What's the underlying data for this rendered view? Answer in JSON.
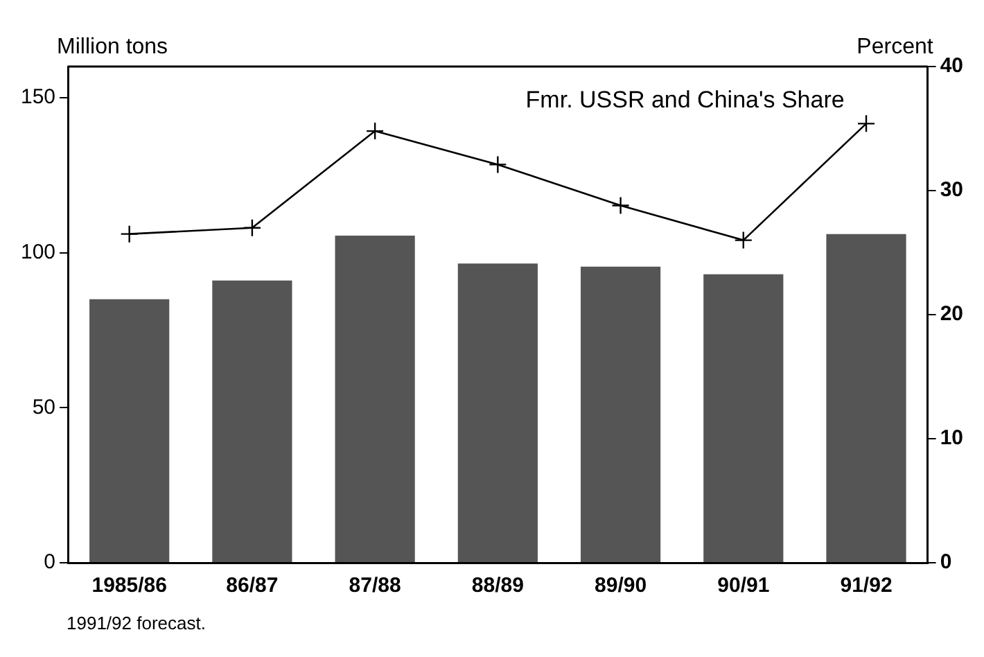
{
  "chart_data": {
    "type": "bar",
    "ylabel": "Million tons",
    "y2label": "Percent",
    "categories": [
      "1985/86",
      "86/87",
      "87/88",
      "88/89",
      "89/90",
      "90/91",
      "91/92"
    ],
    "series": [
      {
        "color": "#555555",
        "values": [
          85,
          91,
          105.5,
          96.5,
          95.5,
          93,
          106
        ]
      },
      {
        "type": "line",
        "name": "Fmr. USSR and China's Share",
        "color": "#000000",
        "axis": "y2",
        "marker": "cross",
        "values": [
          26.5,
          27,
          34.8,
          32.1,
          28.8,
          26,
          35.4
        ]
      }
    ],
    "ylim": [
      0,
      160
    ],
    "yticks": [
      0,
      50,
      100,
      150
    ],
    "y2lim": [
      0,
      40
    ],
    "y2ticks": [
      0,
      10,
      20,
      30,
      40
    ],
    "grid": false,
    "legend": false,
    "annotations": [
      "1991/92 forecast."
    ]
  }
}
